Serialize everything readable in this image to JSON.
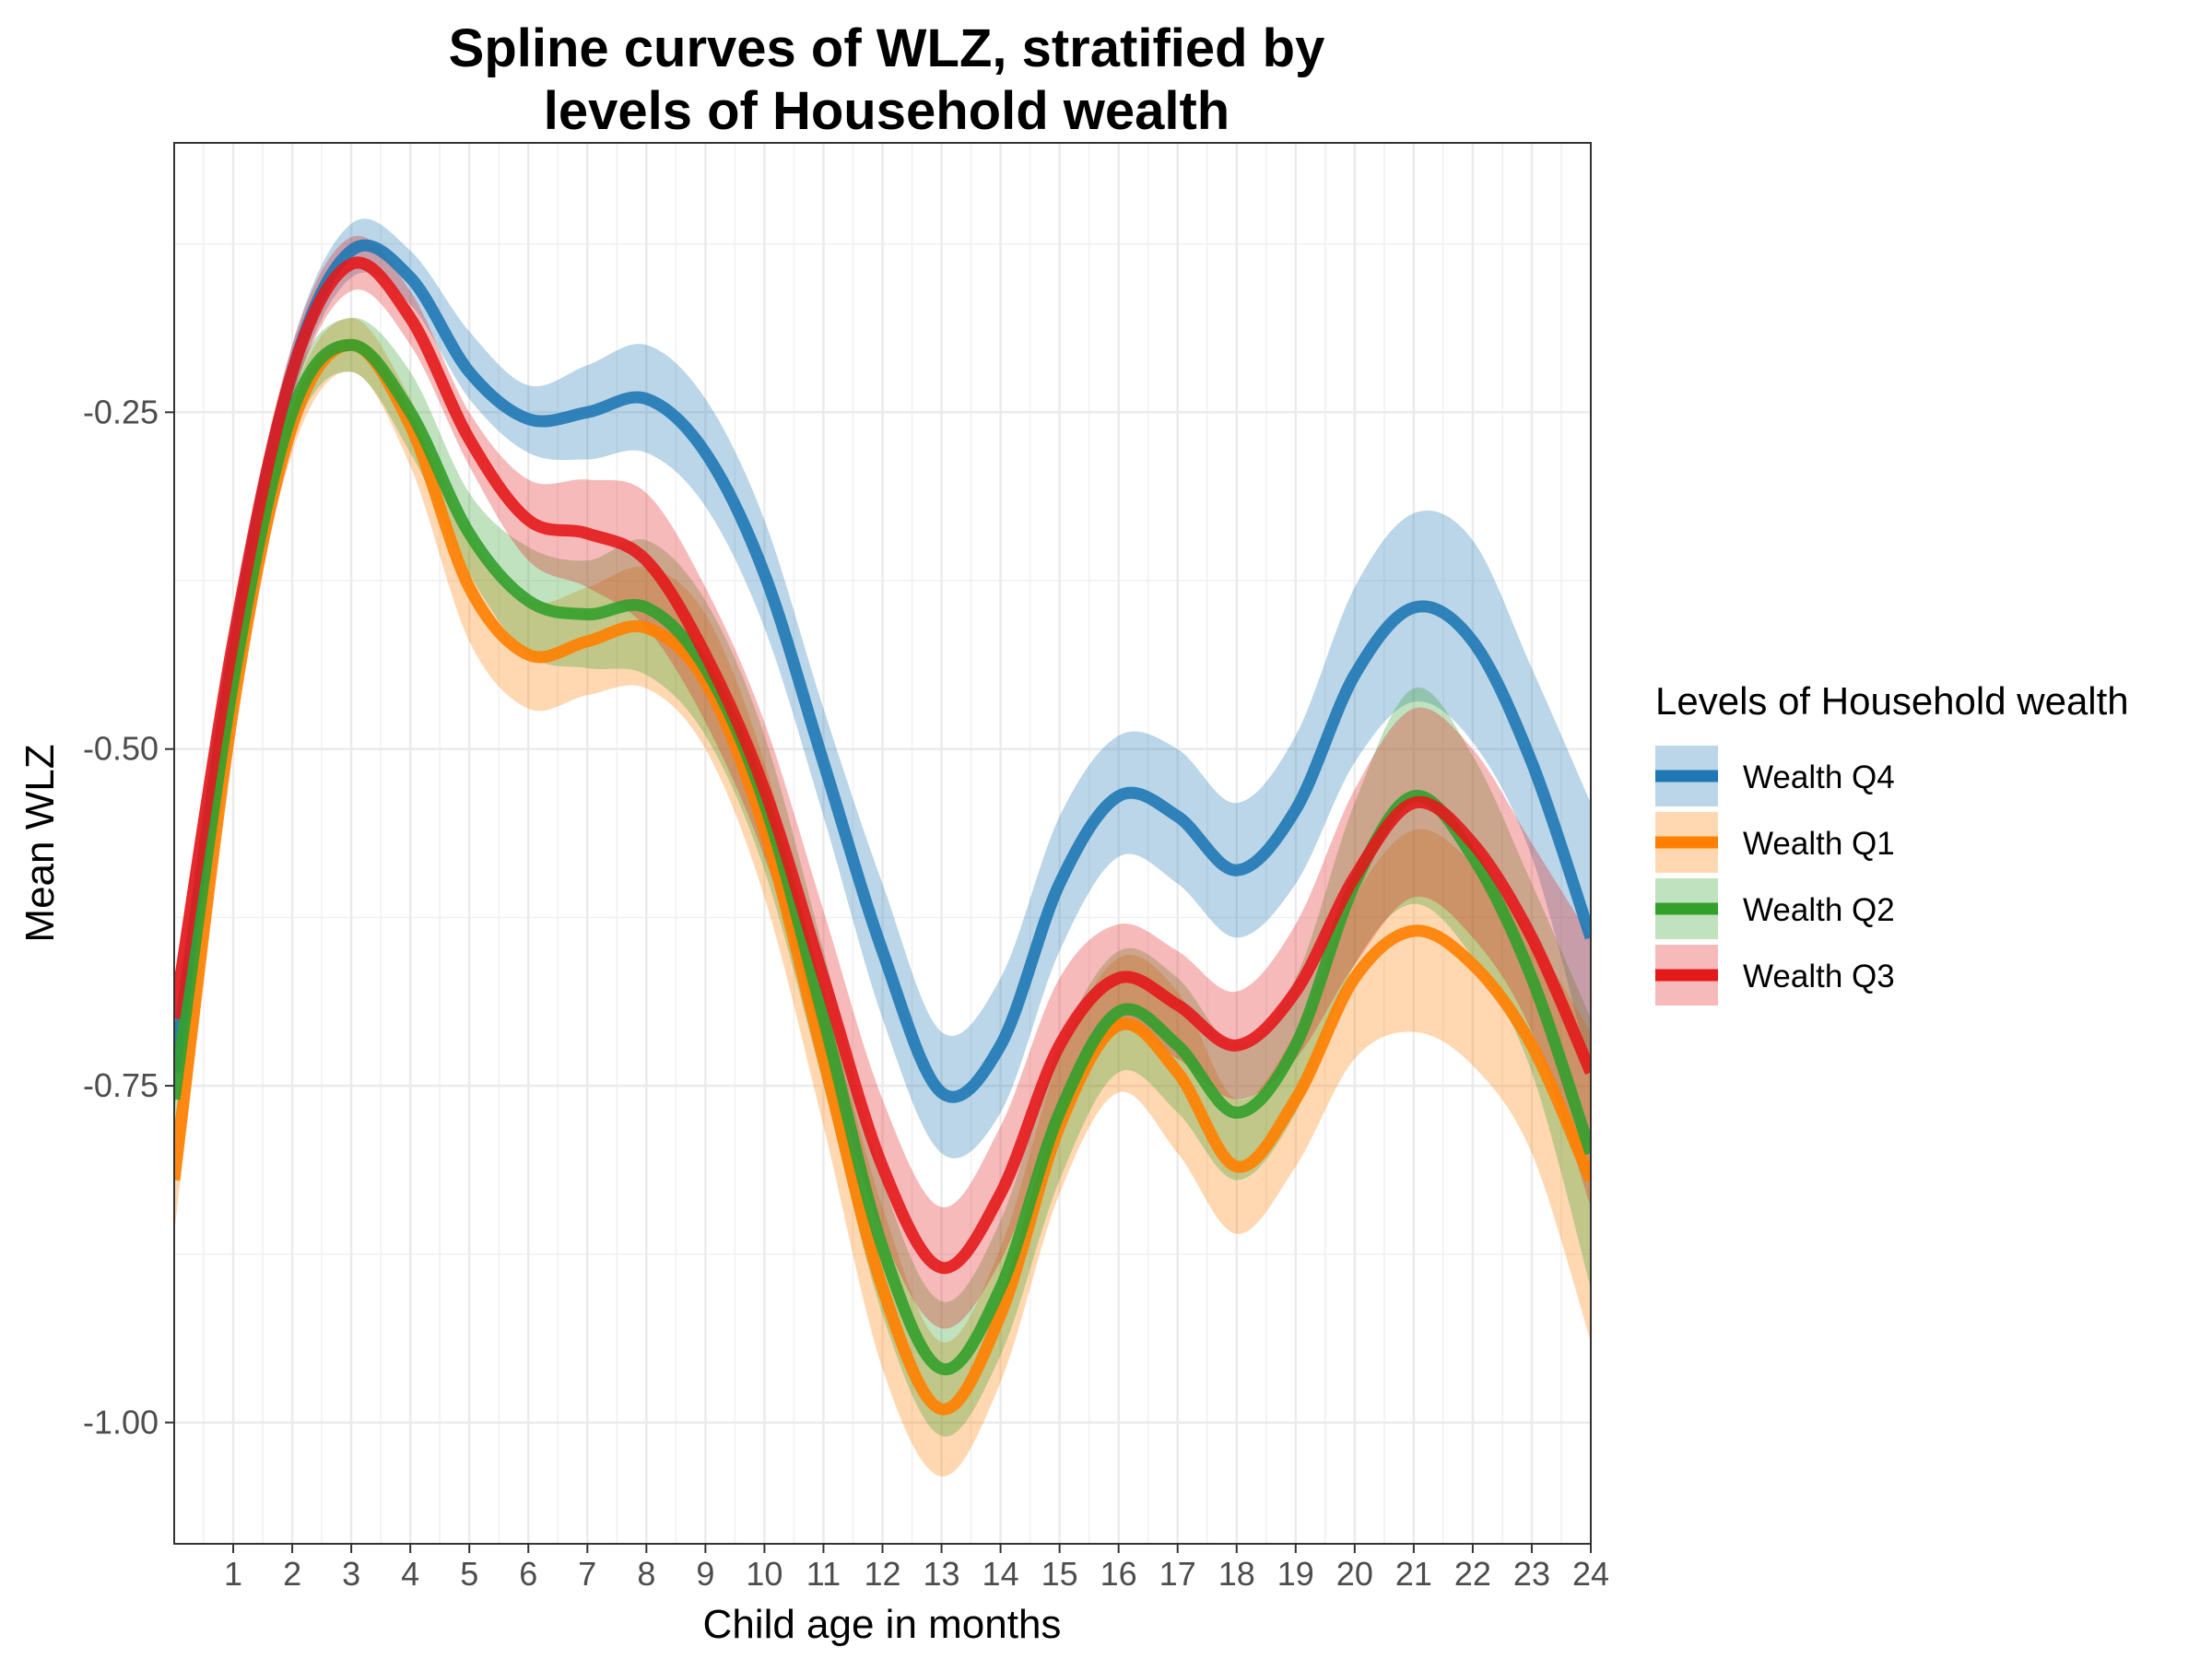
{
  "chart_data": {
    "type": "line",
    "title_lines": [
      "Spline curves of WLZ, stratified by",
      "levels of Household wealth"
    ],
    "xlabel": "Child age in months",
    "ylabel": "Mean WLZ",
    "xlim": [
      0,
      24
    ],
    "ylim": [
      -1.09,
      -0.05
    ],
    "x_ticks": [
      1,
      2,
      3,
      4,
      5,
      6,
      7,
      8,
      9,
      10,
      11,
      12,
      13,
      14,
      15,
      16,
      17,
      18,
      19,
      20,
      21,
      22,
      23,
      24
    ],
    "x_tick_labels": [
      "1",
      "2",
      "3",
      "4",
      "5",
      "6",
      "7",
      "8",
      "9",
      "10",
      "11",
      "12",
      "13",
      "14",
      "15",
      "16",
      "17",
      "18",
      "19",
      "20",
      "21",
      "22",
      "23",
      "24"
    ],
    "y_ticks": [
      -1.0,
      -0.75,
      -0.5,
      -0.25
    ],
    "y_tick_labels": [
      "-1.00",
      "-0.75",
      "-0.50",
      "-0.25"
    ],
    "grid": true,
    "legend_title": "Levels of Household wealth",
    "legend_position": "right",
    "series": [
      {
        "name": "Wealth Q4",
        "color": "#1f78b4",
        "x": [
          0,
          1,
          2,
          3,
          4,
          5,
          6,
          7,
          8,
          9,
          10,
          11,
          12,
          13,
          14,
          15,
          16,
          17,
          18,
          19,
          20,
          21,
          22,
          23,
          24
        ],
        "y": [
          -0.74,
          -0.43,
          -0.22,
          -0.13,
          -0.15,
          -0.22,
          -0.255,
          -0.25,
          -0.24,
          -0.28,
          -0.37,
          -0.51,
          -0.65,
          -0.755,
          -0.72,
          -0.6,
          -0.535,
          -0.55,
          -0.59,
          -0.545,
          -0.445,
          -0.395,
          -0.42,
          -0.51,
          -0.64
        ],
        "lower": [
          -0.77,
          -0.45,
          -0.24,
          -0.15,
          -0.17,
          -0.24,
          -0.28,
          -0.285,
          -0.28,
          -0.32,
          -0.41,
          -0.55,
          -0.7,
          -0.8,
          -0.77,
          -0.65,
          -0.58,
          -0.6,
          -0.64,
          -0.6,
          -0.51,
          -0.465,
          -0.495,
          -0.58,
          -0.74
        ],
        "upper": [
          -0.71,
          -0.41,
          -0.2,
          -0.11,
          -0.13,
          -0.19,
          -0.23,
          -0.215,
          -0.2,
          -0.24,
          -0.33,
          -0.47,
          -0.6,
          -0.71,
          -0.67,
          -0.55,
          -0.49,
          -0.5,
          -0.54,
          -0.49,
          -0.38,
          -0.325,
          -0.345,
          -0.44,
          -0.54
        ]
      },
      {
        "name": "Wealth Q1",
        "color": "#ff7f00",
        "x": [
          0,
          1,
          2,
          3,
          4,
          5,
          6,
          7,
          8,
          9,
          10,
          11,
          12,
          13,
          14,
          15,
          16,
          17,
          18,
          19,
          20,
          21,
          22,
          23,
          24
        ],
        "y": [
          -0.82,
          -0.47,
          -0.26,
          -0.2,
          -0.26,
          -0.38,
          -0.43,
          -0.42,
          -0.41,
          -0.45,
          -0.56,
          -0.73,
          -0.9,
          -0.99,
          -0.92,
          -0.78,
          -0.705,
          -0.74,
          -0.81,
          -0.76,
          -0.67,
          -0.635,
          -0.66,
          -0.72,
          -0.82
        ],
        "lower": [
          -0.86,
          -0.49,
          -0.28,
          -0.22,
          -0.29,
          -0.42,
          -0.47,
          -0.46,
          -0.455,
          -0.5,
          -0.61,
          -0.78,
          -0.96,
          -1.04,
          -0.97,
          -0.83,
          -0.755,
          -0.8,
          -0.86,
          -0.81,
          -0.73,
          -0.71,
          -0.735,
          -0.8,
          -0.94
        ],
        "upper": [
          -0.78,
          -0.45,
          -0.24,
          -0.18,
          -0.24,
          -0.34,
          -0.39,
          -0.38,
          -0.365,
          -0.4,
          -0.51,
          -0.68,
          -0.84,
          -0.94,
          -0.87,
          -0.73,
          -0.655,
          -0.68,
          -0.76,
          -0.71,
          -0.61,
          -0.56,
          -0.585,
          -0.64,
          -0.71
        ]
      },
      {
        "name": "Wealth Q2",
        "color": "#33a02c",
        "x": [
          0,
          1,
          2,
          3,
          4,
          5,
          6,
          7,
          8,
          9,
          10,
          11,
          12,
          13,
          14,
          15,
          16,
          17,
          18,
          19,
          20,
          21,
          22,
          23,
          24
        ],
        "y": [
          -0.76,
          -0.45,
          -0.25,
          -0.2,
          -0.25,
          -0.34,
          -0.39,
          -0.4,
          -0.395,
          -0.44,
          -0.54,
          -0.7,
          -0.87,
          -0.96,
          -0.9,
          -0.77,
          -0.695,
          -0.72,
          -0.77,
          -0.72,
          -0.6,
          -0.535,
          -0.58,
          -0.67,
          -0.8
        ],
        "lower": [
          -0.79,
          -0.47,
          -0.27,
          -0.22,
          -0.28,
          -0.37,
          -0.43,
          -0.44,
          -0.445,
          -0.49,
          -0.59,
          -0.75,
          -0.92,
          -1.01,
          -0.95,
          -0.82,
          -0.74,
          -0.77,
          -0.82,
          -0.77,
          -0.66,
          -0.615,
          -0.655,
          -0.74,
          -0.9
        ],
        "upper": [
          -0.73,
          -0.43,
          -0.23,
          -0.18,
          -0.22,
          -0.31,
          -0.35,
          -0.36,
          -0.345,
          -0.39,
          -0.49,
          -0.65,
          -0.82,
          -0.91,
          -0.85,
          -0.72,
          -0.65,
          -0.67,
          -0.72,
          -0.67,
          -0.54,
          -0.455,
          -0.505,
          -0.6,
          -0.7
        ]
      },
      {
        "name": "Wealth Q3",
        "color": "#e31a1c",
        "x": [
          0,
          1,
          2,
          3,
          4,
          5,
          6,
          7,
          8,
          9,
          10,
          11,
          12,
          13,
          14,
          15,
          16,
          17,
          18,
          19,
          20,
          21,
          22,
          23,
          24
        ],
        "y": [
          -0.7,
          -0.42,
          -0.22,
          -0.14,
          -0.18,
          -0.27,
          -0.33,
          -0.34,
          -0.36,
          -0.43,
          -0.53,
          -0.67,
          -0.81,
          -0.885,
          -0.83,
          -0.72,
          -0.67,
          -0.69,
          -0.72,
          -0.68,
          -0.595,
          -0.54,
          -0.57,
          -0.64,
          -0.74
        ],
        "lower": [
          -0.73,
          -0.44,
          -0.24,
          -0.16,
          -0.2,
          -0.29,
          -0.36,
          -0.38,
          -0.41,
          -0.48,
          -0.58,
          -0.72,
          -0.86,
          -0.93,
          -0.88,
          -0.77,
          -0.71,
          -0.73,
          -0.76,
          -0.73,
          -0.66,
          -0.61,
          -0.64,
          -0.71,
          -0.84
        ],
        "upper": [
          -0.67,
          -0.4,
          -0.2,
          -0.12,
          -0.16,
          -0.25,
          -0.3,
          -0.3,
          -0.31,
          -0.38,
          -0.48,
          -0.62,
          -0.76,
          -0.84,
          -0.78,
          -0.67,
          -0.63,
          -0.65,
          -0.68,
          -0.63,
          -0.53,
          -0.47,
          -0.5,
          -0.57,
          -0.64
        ]
      }
    ],
    "legend_order": [
      "Wealth Q4",
      "Wealth Q1",
      "Wealth Q2",
      "Wealth Q3"
    ],
    "draw_order": [
      "Wealth Q4",
      "Wealth Q1",
      "Wealth Q2",
      "Wealth Q3"
    ]
  }
}
